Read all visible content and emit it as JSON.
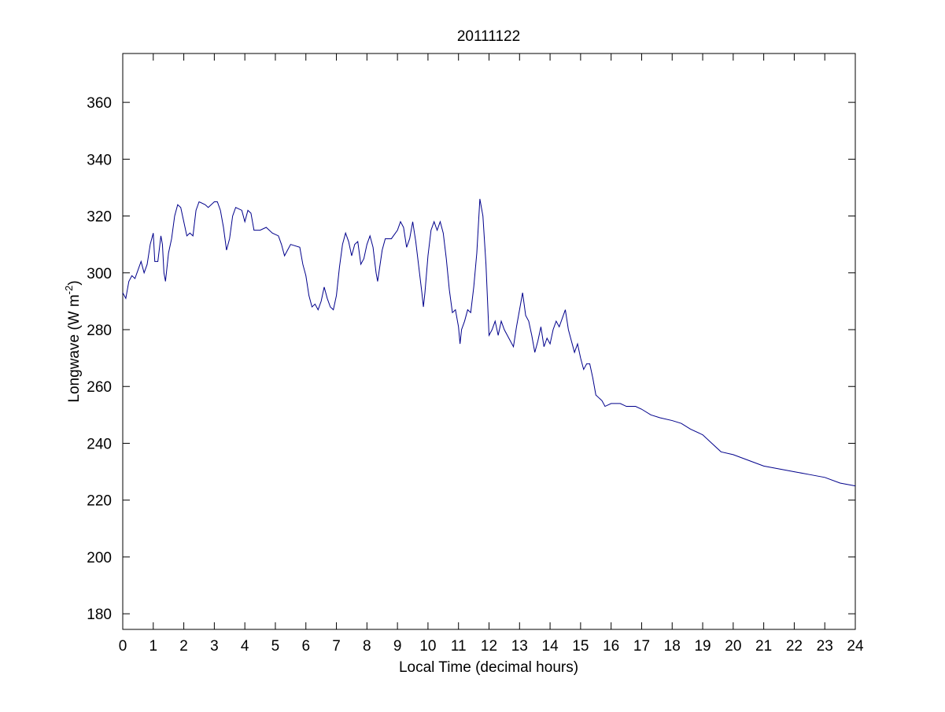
{
  "chart_data": {
    "type": "line",
    "title": "20111122",
    "xlabel": "Local Time (decimal hours)",
    "ylabel": [
      "Longwave (W m",
      "-2",
      ")"
    ],
    "xlim": [
      0,
      24
    ],
    "ylim": [
      174.5,
      377.2
    ],
    "xticks": [
      0,
      1,
      2,
      3,
      4,
      5,
      6,
      7,
      8,
      9,
      10,
      11,
      12,
      13,
      14,
      15,
      16,
      17,
      18,
      19,
      20,
      21,
      22,
      23,
      24
    ],
    "yticks": [
      180,
      200,
      220,
      240,
      260,
      280,
      300,
      320,
      340,
      360
    ],
    "grid": false,
    "x": [
      0,
      0.1,
      0.2,
      0.3,
      0.4,
      0.5,
      0.6,
      0.7,
      0.8,
      0.9,
      1.0,
      1.05,
      1.15,
      1.25,
      1.3,
      1.35,
      1.4,
      1.5,
      1.6,
      1.7,
      1.8,
      1.9,
      2.0,
      2.1,
      2.2,
      2.3,
      2.4,
      2.5,
      2.7,
      2.8,
      3.0,
      3.1,
      3.2,
      3.3,
      3.4,
      3.5,
      3.6,
      3.7,
      3.9,
      4.0,
      4.1,
      4.2,
      4.3,
      4.5,
      4.7,
      4.9,
      5.1,
      5.2,
      5.3,
      5.4,
      5.5,
      5.8,
      5.9,
      6.0,
      6.1,
      6.2,
      6.3,
      6.4,
      6.5,
      6.6,
      6.7,
      6.8,
      6.9,
      7.0,
      7.1,
      7.2,
      7.3,
      7.4,
      7.5,
      7.6,
      7.7,
      7.8,
      7.9,
      8.0,
      8.1,
      8.2,
      8.3,
      8.35,
      8.5,
      8.6,
      8.8,
      9.0,
      9.1,
      9.2,
      9.3,
      9.4,
      9.5,
      9.6,
      9.7,
      9.8,
      9.85,
      9.9,
      10.0,
      10.1,
      10.2,
      10.3,
      10.4,
      10.5,
      10.6,
      10.7,
      10.8,
      10.9,
      11.0,
      11.05,
      11.1,
      11.2,
      11.3,
      11.4,
      11.5,
      11.6,
      11.7,
      11.8,
      11.9,
      12.0,
      12.1,
      12.2,
      12.3,
      12.4,
      12.5,
      12.7,
      12.8,
      12.9,
      13.0,
      13.1,
      13.2,
      13.3,
      13.4,
      13.5,
      13.6,
      13.7,
      13.8,
      13.9,
      14.0,
      14.1,
      14.2,
      14.3,
      14.4,
      14.5,
      14.6,
      14.7,
      14.8,
      14.9,
      15.0,
      15.1,
      15.2,
      15.3,
      15.4,
      15.5,
      15.6,
      15.7,
      15.8,
      16.0,
      16.3,
      16.5,
      16.8,
      17.0,
      17.3,
      17.6,
      18.0,
      18.3,
      18.6,
      19.0,
      19.3,
      19.6,
      20.0,
      20.5,
      21.0,
      21.5,
      22.0,
      22.5,
      23.0,
      23.5,
      24.0
    ],
    "series": [
      {
        "color": "#00008b",
        "values": [
          293,
          291,
          297,
          299,
          298,
          301,
          304,
          300,
          303,
          310,
          314,
          304,
          304,
          313,
          310,
          300,
          297,
          307,
          312,
          320,
          324,
          323,
          318,
          313,
          314,
          313,
          322,
          325,
          324,
          323,
          325,
          325,
          322,
          316,
          308,
          312,
          320,
          323,
          322,
          318,
          322,
          321,
          315,
          315,
          316,
          314,
          313,
          310,
          306,
          308,
          310,
          309,
          303,
          299,
          292,
          288,
          289,
          287,
          290,
          295,
          291,
          288,
          287,
          292,
          302,
          310,
          314,
          311,
          306,
          310,
          311,
          303,
          305,
          310,
          313,
          309,
          300,
          297,
          308,
          312,
          312,
          315,
          318,
          316,
          309,
          312,
          318,
          311,
          302,
          293,
          288,
          293,
          306,
          315,
          318,
          315,
          318,
          314,
          305,
          294,
          286,
          287,
          281,
          275,
          280,
          283,
          287,
          286,
          295,
          307,
          326,
          320,
          303,
          278,
          280,
          283,
          278,
          283,
          280,
          276,
          274,
          281,
          287,
          293,
          285,
          283,
          278,
          272,
          276,
          281,
          274,
          277,
          275,
          280,
          283,
          281,
          284,
          287,
          280,
          276,
          272,
          275,
          270,
          266,
          268,
          268,
          263,
          257,
          256,
          255,
          253,
          254,
          254,
          253,
          253,
          252,
          250,
          249,
          248,
          247,
          245,
          243,
          240,
          237,
          236,
          234,
          232,
          231,
          230,
          229,
          228,
          226,
          225
        ]
      }
    ]
  }
}
